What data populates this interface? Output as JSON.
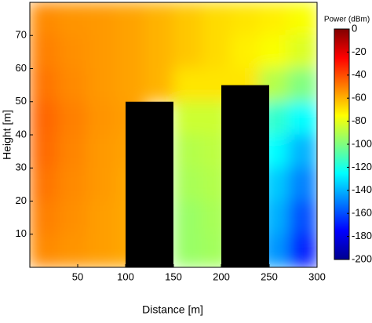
{
  "chart_data": {
    "type": "heatmap",
    "xlabel": "Distance [m]",
    "ylabel": "Height [m]",
    "xlim": [
      0,
      300
    ],
    "xticks": [
      50,
      100,
      150,
      200,
      250,
      300
    ],
    "ylim": [
      0,
      80
    ],
    "yticks": [
      10,
      20,
      30,
      40,
      50,
      60,
      70
    ],
    "x_edges": [
      0,
      30,
      60,
      90,
      120,
      150,
      180,
      210,
      240,
      270,
      300
    ],
    "y_edges": [
      80,
      70,
      60,
      50,
      40,
      30,
      20,
      10,
      0
    ],
    "z": [
      [
        -52,
        -54,
        -55,
        -57,
        -60,
        -64,
        -68,
        -70,
        -72,
        -76
      ],
      [
        -50,
        -53,
        -55,
        -57,
        -60,
        -64,
        -68,
        -72,
        -76,
        -82
      ],
      [
        -48,
        -52,
        -55,
        -57,
        -60,
        -70,
        -70,
        -70,
        -90,
        -100
      ],
      [
        -45,
        -50,
        -54,
        -56,
        null,
        -85,
        -85,
        null,
        -115,
        -125
      ],
      [
        -46,
        -51,
        -55,
        -57,
        null,
        -90,
        -88,
        null,
        -125,
        -140
      ],
      [
        -48,
        -52,
        -55,
        -58,
        null,
        -92,
        -90,
        null,
        -135,
        -150
      ],
      [
        -50,
        -53,
        -56,
        -58,
        null,
        -95,
        -92,
        null,
        -140,
        -160
      ],
      [
        -52,
        -54,
        -56,
        -58,
        null,
        -95,
        -93,
        null,
        -145,
        -170
      ]
    ],
    "buildings": [
      {
        "x": [
          100,
          150
        ],
        "height": 50
      },
      {
        "x": [
          200,
          250
        ],
        "height": 55
      }
    ],
    "colorbar": {
      "label": "Power (dBm)",
      "clim": [
        -200,
        0
      ],
      "ticks": [
        0,
        -20,
        -40,
        -60,
        -80,
        -100,
        -120,
        -140,
        -160,
        -180,
        -200
      ],
      "colormap": "jet"
    }
  }
}
